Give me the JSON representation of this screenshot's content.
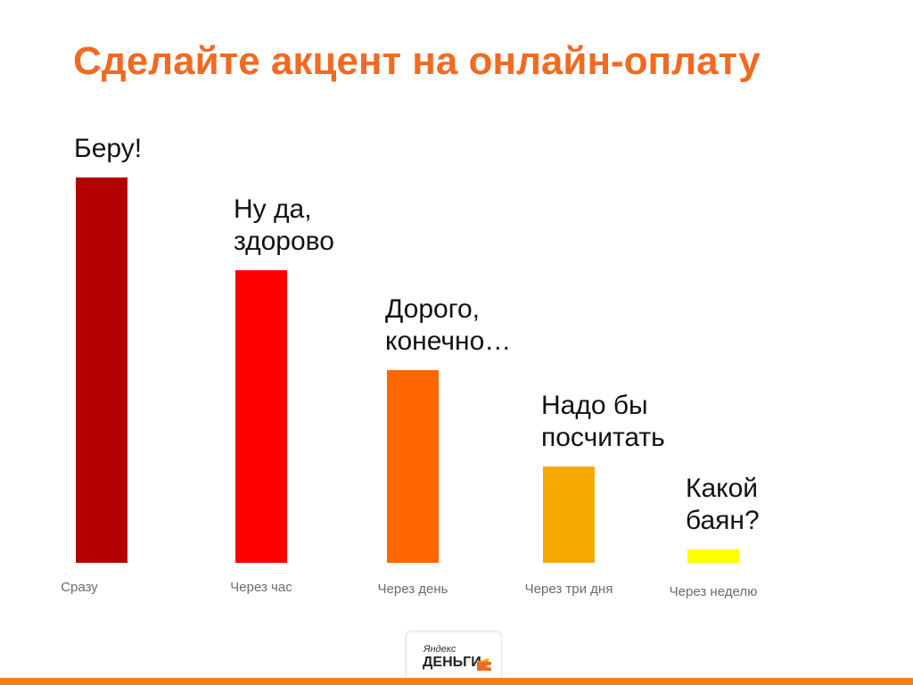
{
  "title": "Сделайте акцент на онлайн-оплату",
  "logo": {
    "small_text": "Яндекс",
    "big_text": "ДЕНЬГИ"
  },
  "chart_data": {
    "type": "bar",
    "categories": [
      "Сразу",
      "Через час",
      "Через день",
      "Через три дня",
      "Через неделю"
    ],
    "values": [
      100,
      76,
      50,
      25,
      3.5
    ],
    "colors": [
      "#b30000",
      "#ff0000",
      "#ff6600",
      "#f7a800",
      "#ffff00"
    ],
    "annotations": [
      "Беру!",
      "Ну да,\nздорово",
      "Дорого,\nконечно…",
      "Надо бы\nпосчитать",
      "Какой\nбаян?"
    ],
    "ylim": [
      0,
      100
    ],
    "grid": false,
    "legend": "none"
  }
}
